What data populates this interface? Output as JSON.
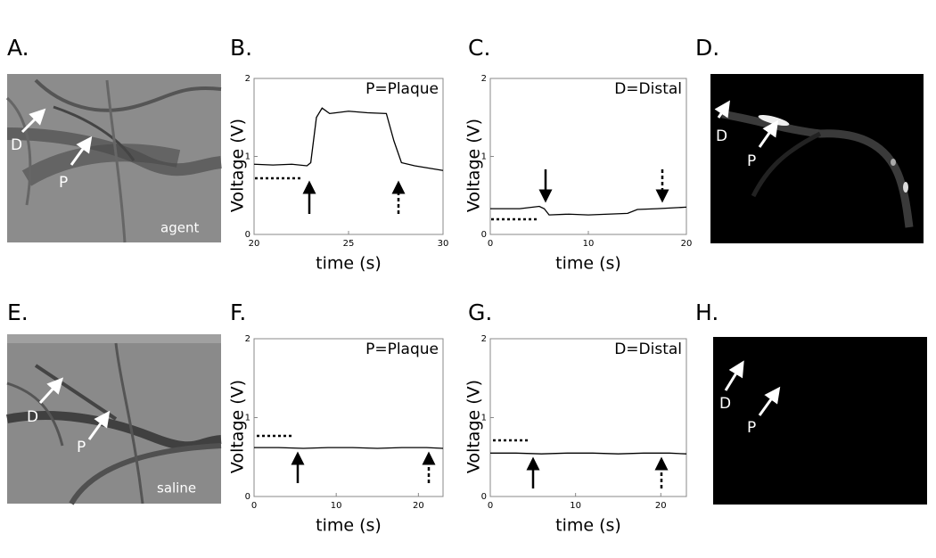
{
  "panels": [
    "A.",
    "B.",
    "C.",
    "D.",
    "E.",
    "F.",
    "G.",
    "H."
  ],
  "images": [
    {
      "markers": [
        "D",
        "P"
      ],
      "label": "agent"
    },
    {
      "markers": [
        "D",
        "P"
      ]
    },
    {
      "markers": [
        "D",
        "P"
      ],
      "label": "saline"
    },
    {
      "markers": [
        "D",
        "P"
      ]
    }
  ],
  "chart_data": [
    {
      "type": "line",
      "title": "P=Plaque",
      "xlabel": "time (s)",
      "ylabel": "Voltage (V)",
      "x": [
        20,
        21,
        22,
        22.8,
        23,
        23.3,
        23.6,
        24,
        25,
        26,
        27,
        27.4,
        27.8,
        28.5,
        29.5,
        30
      ],
      "color": "#000",
      "values": [
        0.9,
        0.89,
        0.9,
        0.88,
        0.92,
        1.5,
        1.62,
        1.55,
        1.58,
        1.56,
        1.55,
        1.2,
        0.92,
        0.88,
        0.84,
        0.82
      ],
      "xlim": [
        20,
        30
      ],
      "ylim": [
        0,
        2
      ],
      "xticks": [
        20,
        25,
        30
      ],
      "yticks": [
        0,
        1,
        2
      ]
    },
    {
      "type": "line",
      "title": "D=Distal",
      "xlabel": "time (s)",
      "ylabel": "Voltage (V)",
      "x": [
        0,
        3,
        5,
        5.5,
        6,
        8,
        10,
        12,
        14,
        15,
        17,
        20
      ],
      "color": "#000",
      "values": [
        0.33,
        0.33,
        0.36,
        0.33,
        0.25,
        0.26,
        0.25,
        0.26,
        0.27,
        0.32,
        0.33,
        0.35
      ],
      "xlim": [
        0,
        20
      ],
      "ylim": [
        0,
        2
      ],
      "xticks": [
        0,
        10,
        20
      ],
      "yticks": [
        0,
        1,
        2
      ]
    },
    {
      "type": "line",
      "title": "P=Plaque",
      "xlabel": "time (s)",
      "ylabel": "Voltage (V)",
      "x": [
        0,
        3,
        6,
        9,
        12,
        15,
        18,
        21,
        23
      ],
      "color": "#000",
      "values": [
        0.62,
        0.62,
        0.61,
        0.62,
        0.62,
        0.61,
        0.62,
        0.62,
        0.61
      ],
      "xlim": [
        0,
        23
      ],
      "ylim": [
        0,
        2
      ],
      "xticks": [
        0,
        10,
        20
      ],
      "yticks": [
        0,
        1,
        2
      ]
    },
    {
      "type": "line",
      "title": "D=Distal",
      "xlabel": "time (s)",
      "ylabel": "Voltage (V)",
      "x": [
        0,
        3,
        6,
        9,
        12,
        15,
        18,
        21,
        23
      ],
      "color": "#000",
      "values": [
        0.55,
        0.55,
        0.54,
        0.55,
        0.55,
        0.54,
        0.55,
        0.55,
        0.54
      ],
      "xlim": [
        0,
        23
      ],
      "ylim": [
        0,
        2
      ],
      "xticks": [
        0,
        10,
        20
      ],
      "yticks": [
        0,
        1,
        2
      ]
    }
  ]
}
